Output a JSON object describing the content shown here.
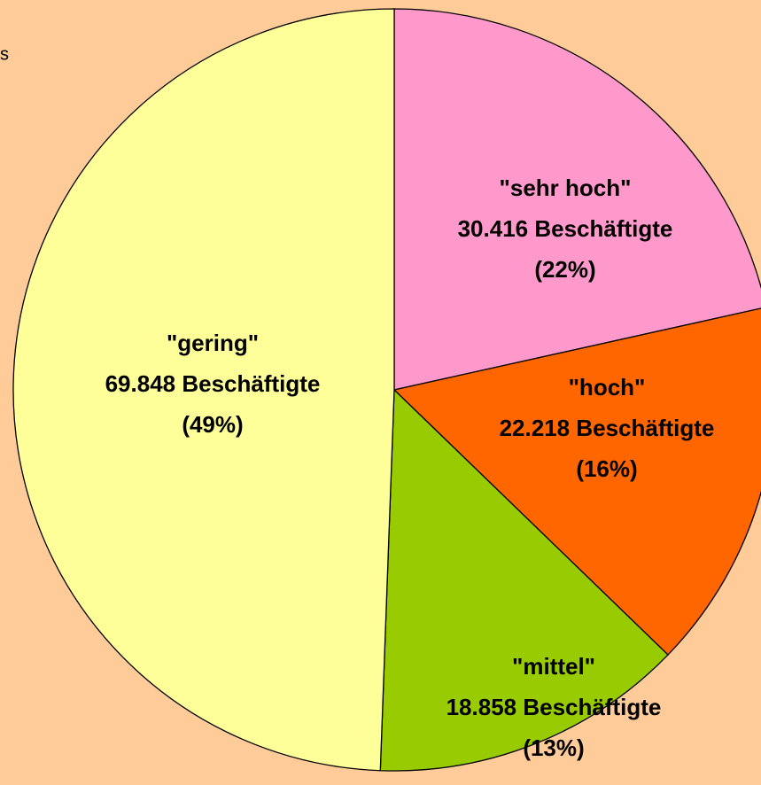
{
  "chart_data": {
    "type": "pie",
    "side_text": "s",
    "categories": [
      "\"sehr hoch\"",
      "\"hoch\"",
      "\"mittel\"",
      "\"gering\""
    ],
    "values": [
      30416,
      22218,
      18858,
      69848
    ],
    "value_labels": [
      "30.416 Beschäftigte",
      "22.218 Beschäftigte",
      "18.858 Beschäftigte",
      "69.848 Beschäftigte"
    ],
    "percents": [
      22,
      16,
      13,
      49
    ],
    "percent_labels": [
      "(22%)",
      "(16%)",
      "(13%)",
      "(49%)"
    ],
    "colors": [
      "#FF99CC",
      "#FF6600",
      "#99CC00",
      "#FFFF99"
    ]
  }
}
